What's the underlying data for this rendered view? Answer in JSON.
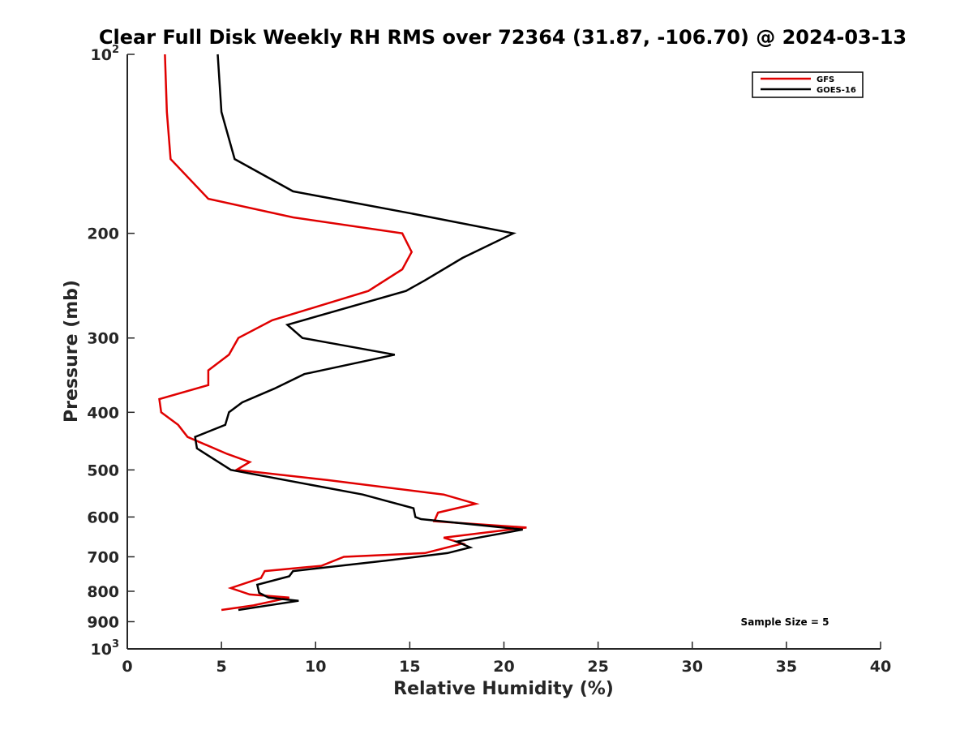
{
  "colors": {
    "gfs": "#e00000",
    "goes": "#000000",
    "axis": "#262626"
  },
  "chart_data": {
    "type": "line",
    "title": "Clear Full Disk Weekly RH RMS over 72364 (31.87, -106.70) @ 2024-03-13",
    "xlabel": "Relative Humidity (%)",
    "ylabel": "Pressure (mb)",
    "xlim": [
      0,
      40
    ],
    "ylim": [
      100,
      1000
    ],
    "yscale": "log",
    "y_reversed": true,
    "x_ticks": [
      0,
      5,
      10,
      15,
      20,
      25,
      30,
      35,
      40
    ],
    "x_tick_labels": [
      "0",
      "5",
      "10",
      "15",
      "20",
      "25",
      "30",
      "35",
      "40"
    ],
    "y_ticks": [
      100,
      200,
      300,
      400,
      500,
      600,
      700,
      800,
      900,
      1000
    ],
    "y_tick_labels": [
      {
        "base": "10",
        "exp": "2"
      },
      {
        "base": "200",
        "exp": ""
      },
      {
        "base": "300",
        "exp": ""
      },
      {
        "base": "400",
        "exp": ""
      },
      {
        "base": "500",
        "exp": ""
      },
      {
        "base": "600",
        "exp": ""
      },
      {
        "base": "700",
        "exp": ""
      },
      {
        "base": "800",
        "exp": ""
      },
      {
        "base": "900",
        "exp": ""
      },
      {
        "base": "10",
        "exp": "3"
      }
    ],
    "grid": false,
    "legend_position": "top-right",
    "annotation": "Sample Size = 5",
    "series": [
      {
        "name": "GFS",
        "color": "#e00000",
        "points": [
          [
            2.0,
            100
          ],
          [
            2.1,
            125
          ],
          [
            2.3,
            150
          ],
          [
            4.3,
            175
          ],
          [
            8.8,
            188
          ],
          [
            14.6,
            200
          ],
          [
            15.1,
            215
          ],
          [
            14.6,
            230
          ],
          [
            12.8,
            250
          ],
          [
            7.7,
            280
          ],
          [
            5.9,
            300
          ],
          [
            5.4,
            320
          ],
          [
            4.3,
            340
          ],
          [
            4.3,
            360
          ],
          [
            1.7,
            380
          ],
          [
            1.8,
            400
          ],
          [
            2.7,
            420
          ],
          [
            3.2,
            440
          ],
          [
            5.3,
            470
          ],
          [
            6.5,
            485
          ],
          [
            5.8,
            500
          ],
          [
            10.6,
            520
          ],
          [
            16.8,
            550
          ],
          [
            18.5,
            570
          ],
          [
            16.5,
            590
          ],
          [
            16.3,
            610
          ],
          [
            21.2,
            625
          ],
          [
            16.8,
            650
          ],
          [
            17.8,
            665
          ],
          [
            15.8,
            690
          ],
          [
            11.5,
            700
          ],
          [
            10.3,
            725
          ],
          [
            7.3,
            740
          ],
          [
            7.1,
            760
          ],
          [
            5.5,
            790
          ],
          [
            6.5,
            810
          ],
          [
            8.6,
            820
          ],
          [
            6.7,
            845
          ],
          [
            5.0,
            860
          ]
        ]
      },
      {
        "name": "GOES-16",
        "color": "#000000",
        "points": [
          [
            4.8,
            100
          ],
          [
            5.0,
            125
          ],
          [
            5.7,
            150
          ],
          [
            8.8,
            170
          ],
          [
            15.0,
            185
          ],
          [
            20.5,
            200
          ],
          [
            17.8,
            220
          ],
          [
            15.8,
            240
          ],
          [
            14.8,
            250
          ],
          [
            8.5,
            285
          ],
          [
            9.3,
            300
          ],
          [
            14.2,
            320
          ],
          [
            9.4,
            345
          ],
          [
            7.8,
            365
          ],
          [
            6.1,
            385
          ],
          [
            5.4,
            400
          ],
          [
            5.2,
            420
          ],
          [
            3.6,
            440
          ],
          [
            3.7,
            460
          ],
          [
            5.5,
            500
          ],
          [
            12.5,
            550
          ],
          [
            15.2,
            580
          ],
          [
            15.3,
            600
          ],
          [
            15.6,
            605
          ],
          [
            21.0,
            630
          ],
          [
            17.5,
            660
          ],
          [
            18.2,
            675
          ],
          [
            17.0,
            690
          ],
          [
            13.8,
            710
          ],
          [
            8.8,
            740
          ],
          [
            8.6,
            755
          ],
          [
            6.9,
            780
          ],
          [
            7.0,
            805
          ],
          [
            7.5,
            820
          ],
          [
            9.1,
            830
          ],
          [
            5.9,
            860
          ]
        ]
      }
    ]
  }
}
